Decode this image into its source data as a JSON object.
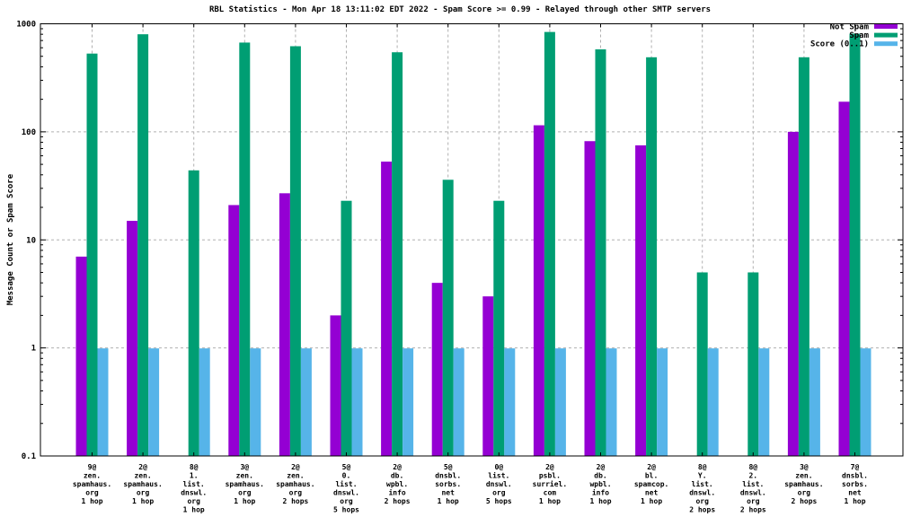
{
  "colors": {
    "not_spam": "#9400d3",
    "spam": "#009e73",
    "score": "#56b4e9",
    "grid": "#b0b0b0",
    "frame": "#000000",
    "background": "#ffffff"
  },
  "legend": {
    "items": [
      {
        "label": "Not Spam",
        "color": "#9400d3",
        "swatch": "notspam-swatch"
      },
      {
        "label": "Spam",
        "color": "#009e73",
        "swatch": "spam-swatch"
      },
      {
        "label": "Score (0..1)",
        "color": "#56b4e9",
        "swatch": "score-swatch"
      }
    ]
  },
  "chart_data": {
    "type": "bar",
    "title": "RBL Statistics - Mon Apr 18 13:11:02 EDT 2022 - Spam Score >= 0.99 - Relayed through other SMTP servers",
    "xlabel": "",
    "ylabel": "Message Count or Spam Score",
    "yscale": "log",
    "ylim": [
      0.1,
      1000
    ],
    "ytick_labels": [
      "0.1",
      "1",
      "10",
      "100",
      "1000"
    ],
    "grid": true,
    "legend_position": "top-right-inside",
    "categories": [
      [
        "9@",
        "zen.",
        "spamhaus.",
        "org",
        "1 hop"
      ],
      [
        "2@",
        "zen.",
        "spamhaus.",
        "org",
        "1 hop"
      ],
      [
        "8@",
        "1.",
        "list.",
        "dnswl.",
        "org",
        "1 hop"
      ],
      [
        "3@",
        "zen.",
        "spamhaus.",
        "org",
        "1 hop"
      ],
      [
        "2@",
        "zen.",
        "spamhaus.",
        "org",
        "2 hops"
      ],
      [
        "5@",
        "0.",
        "list.",
        "dnswl.",
        "org",
        "5 hops"
      ],
      [
        "2@",
        "db.",
        "wpbl.",
        "info",
        "2 hops"
      ],
      [
        "5@",
        "dnsbl.",
        "sorbs.",
        "net",
        "1 hop"
      ],
      [
        "0@",
        "list.",
        "dnswl.",
        "org",
        "5 hops"
      ],
      [
        "2@",
        "psbl.",
        "surriel.",
        "com",
        "1 hop"
      ],
      [
        "2@",
        "db.",
        "wpbl.",
        "info",
        "1 hop"
      ],
      [
        "2@",
        "bl.",
        "spamcop.",
        "net",
        "1 hop"
      ],
      [
        "8@",
        "Y.",
        "list.",
        "dnswl.",
        "org",
        "2 hops"
      ],
      [
        "8@",
        "2.",
        "list.",
        "dnswl.",
        "org",
        "2 hops"
      ],
      [
        "3@",
        "zen.",
        "spamhaus.",
        "org",
        "2 hops"
      ],
      [
        "7@",
        "dnsbl.",
        "sorbs.",
        "net",
        "1 hop"
      ]
    ],
    "series": [
      {
        "name": "Not Spam",
        "color": "#9400d3",
        "values": [
          7,
          15,
          null,
          21,
          27,
          2,
          53,
          4,
          3,
          115,
          82,
          75,
          null,
          null,
          100,
          190
        ]
      },
      {
        "name": "Spam",
        "color": "#009e73",
        "values": [
          530,
          800,
          44,
          670,
          620,
          23,
          545,
          36,
          23,
          840,
          580,
          490,
          5,
          5,
          490,
          810
        ]
      },
      {
        "name": "Score (0..1)",
        "color": "#56b4e9",
        "values": [
          0.99,
          0.99,
          0.99,
          0.99,
          0.99,
          0.99,
          0.99,
          0.99,
          0.99,
          0.99,
          0.99,
          0.99,
          0.99,
          0.99,
          0.99,
          0.99
        ]
      }
    ]
  }
}
